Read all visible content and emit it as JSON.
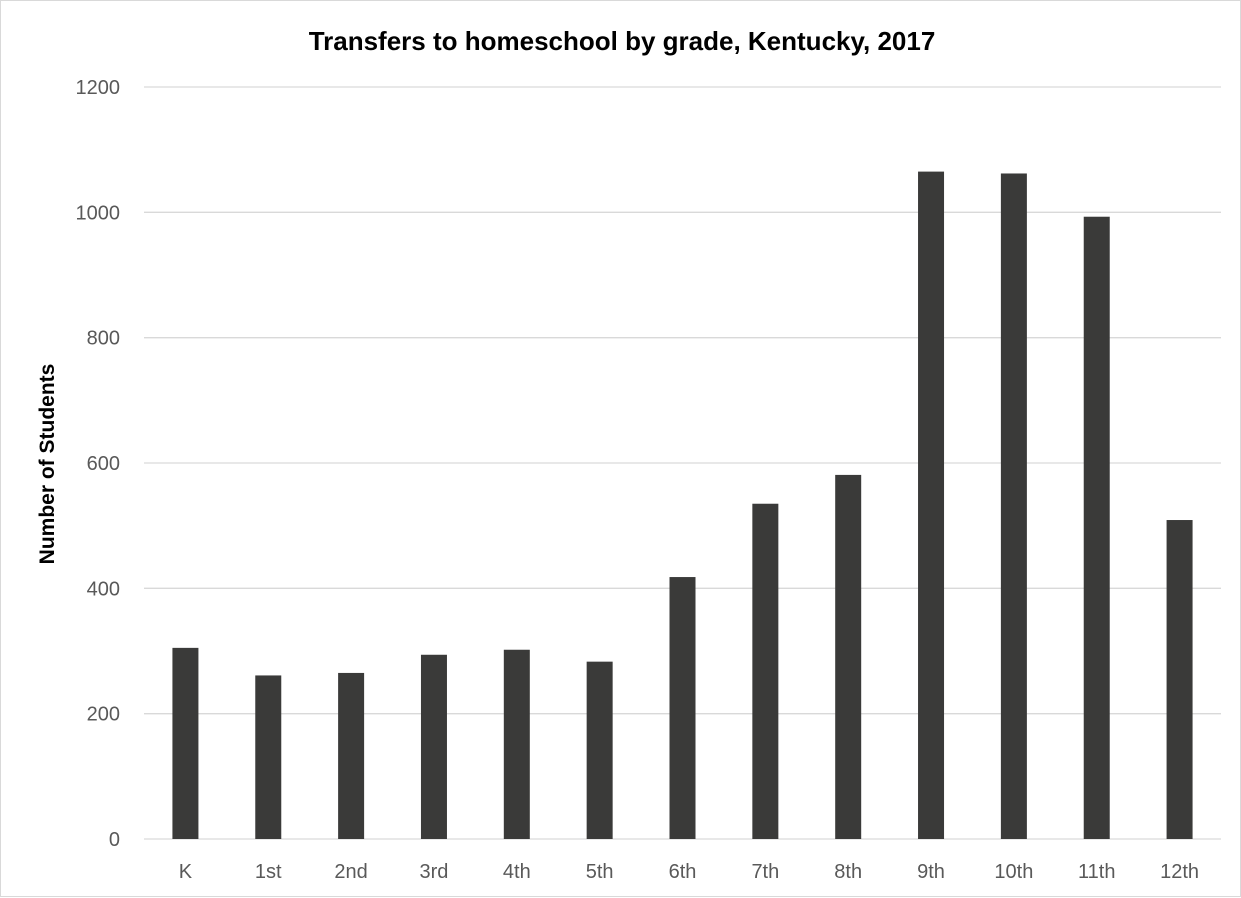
{
  "chart_data": {
    "type": "bar",
    "title": "Transfers to homeschool by grade, Kentucky, 2017",
    "xlabel": "",
    "ylabel": "Number of Students",
    "categories": [
      "K",
      "1st",
      "2nd",
      "3rd",
      "4th",
      "5th",
      "6th",
      "7th",
      "8th",
      "9th",
      "10th",
      "11th",
      "12th"
    ],
    "values": [
      305,
      261,
      265,
      294,
      302,
      283,
      418,
      535,
      581,
      1065,
      1062,
      993,
      509
    ],
    "ylim": [
      0,
      1200
    ],
    "yticks": [
      "0",
      "200",
      "400",
      "600",
      "800",
      "1000",
      "1200"
    ],
    "grid": true,
    "legend": "none",
    "bar_color": "#3a3a39"
  }
}
